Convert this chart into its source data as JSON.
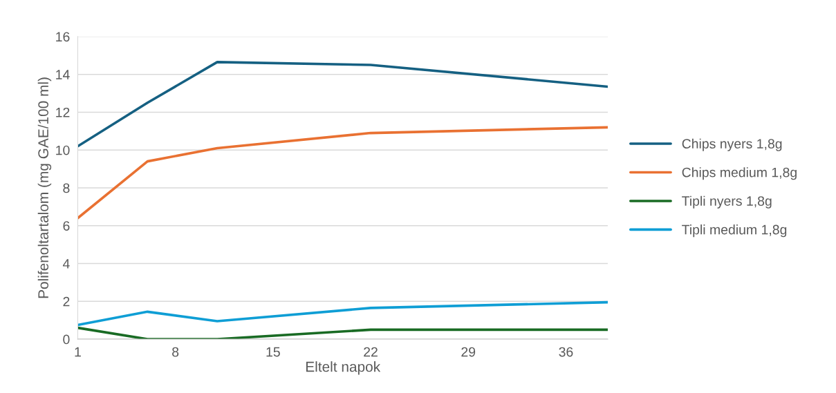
{
  "chart_data": {
    "type": "line",
    "xlabel": "Eltelt napok",
    "ylabel": "Polifenoltartalom (mg GAE/100 ml)",
    "x": [
      1,
      6,
      11,
      22,
      39
    ],
    "xlim": [
      1,
      39
    ],
    "xticks": [
      1,
      8,
      15,
      22,
      29,
      36
    ],
    "ylim": [
      0,
      16
    ],
    "yticks": [
      0,
      2,
      4,
      6,
      8,
      10,
      12,
      14,
      16
    ],
    "grid": "y",
    "legend": "right",
    "marker": "none",
    "line_style": "solid",
    "series": [
      {
        "name": "Chips nyers 1,8g",
        "color": "#156082",
        "values": [
          10.2,
          12.5,
          14.65,
          14.5,
          13.35
        ]
      },
      {
        "name": "Chips medium 1,8g",
        "color": "#e97132",
        "values": [
          6.4,
          9.4,
          10.1,
          10.9,
          11.2
        ]
      },
      {
        "name": "Tipli nyers 1,8g",
        "color": "#196b24",
        "values": [
          0.6,
          0,
          0,
          0.5,
          0.5
        ]
      },
      {
        "name": "Tipli medium 1,8g",
        "color": "#0f9ed5",
        "values": [
          0.75,
          1.45,
          0.95,
          1.65,
          1.95
        ]
      }
    ]
  }
}
